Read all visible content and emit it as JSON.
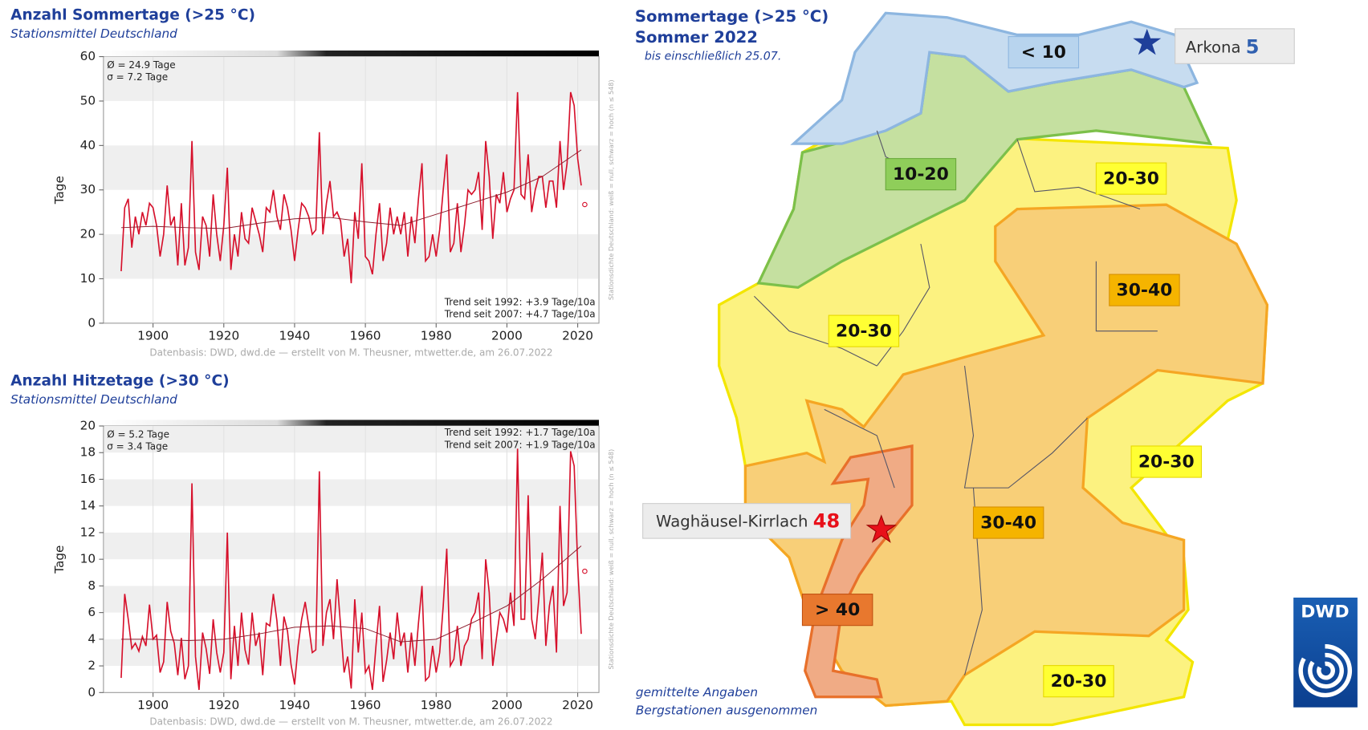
{
  "chart_data": [
    {
      "type": "line",
      "title": "Anzahl Sommertage (>25 °C)",
      "subtitle": "Stationsmittel Deutschland",
      "y_label": "Tage",
      "x": [
        1891,
        1892,
        1893,
        1894,
        1895,
        1896,
        1897,
        1898,
        1899,
        1900,
        1901,
        1902,
        1903,
        1904,
        1905,
        1906,
        1907,
        1908,
        1909,
        1910,
        1911,
        1912,
        1913,
        1914,
        1915,
        1916,
        1917,
        1918,
        1919,
        1920,
        1921,
        1922,
        1923,
        1924,
        1925,
        1926,
        1927,
        1928,
        1929,
        1930,
        1931,
        1932,
        1933,
        1934,
        1935,
        1936,
        1937,
        1938,
        1939,
        1940,
        1941,
        1942,
        1943,
        1944,
        1945,
        1946,
        1947,
        1948,
        1949,
        1950,
        1951,
        1952,
        1953,
        1954,
        1955,
        1956,
        1957,
        1958,
        1959,
        1960,
        1961,
        1962,
        1963,
        1964,
        1965,
        1966,
        1967,
        1968,
        1969,
        1970,
        1971,
        1972,
        1973,
        1974,
        1975,
        1976,
        1977,
        1978,
        1979,
        1980,
        1981,
        1982,
        1983,
        1984,
        1985,
        1986,
        1987,
        1988,
        1989,
        1990,
        1991,
        1992,
        1993,
        1994,
        1995,
        1996,
        1997,
        1998,
        1999,
        2000,
        2001,
        2002,
        2003,
        2004,
        2005,
        2006,
        2007,
        2008,
        2009,
        2010,
        2011,
        2012,
        2013,
        2014,
        2015,
        2016,
        2017,
        2018,
        2019,
        2020,
        2021
      ],
      "xlim": [
        1886,
        2026
      ],
      "ylim": [
        0,
        60
      ],
      "xticks": [
        1900,
        1920,
        1940,
        1960,
        1980,
        2000,
        2020
      ],
      "yticks": [
        0,
        10,
        20,
        30,
        40,
        50,
        60
      ],
      "series": [
        {
          "color": "#d6102b",
          "values": [
            11.7,
            26,
            28,
            17,
            24,
            20,
            25,
            22,
            27,
            26,
            22,
            15,
            20,
            31,
            22,
            24,
            13,
            27,
            13,
            17,
            41,
            16,
            12,
            24,
            22,
            15,
            29,
            20,
            14,
            22,
            35,
            12,
            20,
            15,
            25,
            19,
            18,
            26,
            23,
            20,
            16,
            26,
            25,
            30,
            24,
            21,
            29,
            26,
            21,
            14,
            21,
            27,
            26,
            24,
            20,
            21,
            43,
            20,
            27,
            32,
            24,
            25,
            23,
            15,
            19,
            9,
            25,
            19,
            36,
            15,
            14,
            11,
            20,
            27,
            14,
            18,
            26,
            20,
            24,
            20,
            25,
            15,
            24,
            18,
            28,
            36,
            14,
            15,
            20,
            15,
            21,
            30,
            38,
            16,
            18,
            27,
            16,
            22,
            30,
            29,
            30,
            34,
            21,
            41,
            33,
            19,
            29,
            27,
            34,
            25,
            28,
            30,
            52,
            29,
            28,
            38,
            25,
            30,
            33,
            33,
            26,
            32,
            32,
            26,
            41,
            30,
            36,
            52,
            49,
            37,
            31
          ]
        },
        {
          "color": "#8c1c2c",
          "x": [
            1891,
            1900,
            1910,
            1920,
            1930,
            1940,
            1950,
            1960,
            1970,
            1980,
            1990,
            2000,
            2010,
            2021
          ],
          "values": [
            21.5,
            21.8,
            21.5,
            21.3,
            22.5,
            23.5,
            23.8,
            22.8,
            22.0,
            24.5,
            27.0,
            29.5,
            33.0,
            39.0
          ]
        },
        {
          "color": "#d6102b",
          "x": [
            2022
          ],
          "values": [
            26.7
          ],
          "marker": "circle"
        }
      ],
      "annotations": [
        "Ø = 24.9 Tage",
        "σ = 7.2 Tage",
        "Trend seit 1992: +3.9 Tage/10a",
        "Trend seit 2007: +4.7 Tage/10a"
      ],
      "trend_position": "bottom",
      "source": "Datenbasis: DWD, dwd.de — erstellt von M. Theusner, mtwetter.de, am 26.07.2022",
      "side_note": "Stationsdichte Deutschland: weiß = null, schwarz = hoch (n ≤ 548)"
    },
    {
      "type": "line",
      "title": "Anzahl Hitzetage (>30 °C)",
      "subtitle": "Stationsmittel Deutschland",
      "y_label": "Tage",
      "x": [
        1891,
        1892,
        1893,
        1894,
        1895,
        1896,
        1897,
        1898,
        1899,
        1900,
        1901,
        1902,
        1903,
        1904,
        1905,
        1906,
        1907,
        1908,
        1909,
        1910,
        1911,
        1912,
        1913,
        1914,
        1915,
        1916,
        1917,
        1918,
        1919,
        1920,
        1921,
        1922,
        1923,
        1924,
        1925,
        1926,
        1927,
        1928,
        1929,
        1930,
        1931,
        1932,
        1933,
        1934,
        1935,
        1936,
        1937,
        1938,
        1939,
        1940,
        1941,
        1942,
        1943,
        1944,
        1945,
        1946,
        1947,
        1948,
        1949,
        1950,
        1951,
        1952,
        1953,
        1954,
        1955,
        1956,
        1957,
        1958,
        1959,
        1960,
        1961,
        1962,
        1963,
        1964,
        1965,
        1966,
        1967,
        1968,
        1969,
        1970,
        1971,
        1972,
        1973,
        1974,
        1975,
        1976,
        1977,
        1978,
        1979,
        1980,
        1981,
        1982,
        1983,
        1984,
        1985,
        1986,
        1987,
        1988,
        1989,
        1990,
        1991,
        1992,
        1993,
        1994,
        1995,
        1996,
        1997,
        1998,
        1999,
        2000,
        2001,
        2002,
        2003,
        2004,
        2005,
        2006,
        2007,
        2008,
        2009,
        2010,
        2011,
        2012,
        2013,
        2014,
        2015,
        2016,
        2017,
        2018,
        2019,
        2020,
        2021
      ],
      "xlim": [
        1886,
        2026
      ],
      "ylim": [
        0,
        20
      ],
      "xticks": [
        1900,
        1920,
        1940,
        1960,
        1980,
        2000,
        2020
      ],
      "yticks": [
        0,
        2,
        4,
        6,
        8,
        10,
        12,
        14,
        16,
        18,
        20
      ],
      "series": [
        {
          "color": "#d6102b",
          "values": [
            1.1,
            7.4,
            5.5,
            3.3,
            3.7,
            3.1,
            4.2,
            3.5,
            6.6,
            4.0,
            4.3,
            1.5,
            2.3,
            6.8,
            4.6,
            3.7,
            1.3,
            4.1,
            1.0,
            2.0,
            15.7,
            2.7,
            0.2,
            4.5,
            3.3,
            1.4,
            5.5,
            3.0,
            1.5,
            3.0,
            12.0,
            1.0,
            5.0,
            2.0,
            6.0,
            3.2,
            2.1,
            6.0,
            3.5,
            4.5,
            1.3,
            5.2,
            5.0,
            7.4,
            5.4,
            2.0,
            5.7,
            4.6,
            2.1,
            0.6,
            3.5,
            5.5,
            6.8,
            5.0,
            3.0,
            3.2,
            16.6,
            3.5,
            6.0,
            7.0,
            4.0,
            8.5,
            5.0,
            1.5,
            2.7,
            0.3,
            7.0,
            3.0,
            6.0,
            1.5,
            2.0,
            0.2,
            3.5,
            6.5,
            0.8,
            2.4,
            4.5,
            2.5,
            6.0,
            3.5,
            4.5,
            1.5,
            4.5,
            2.0,
            5.2,
            8.0,
            0.9,
            1.2,
            3.5,
            1.5,
            3.0,
            6.5,
            10.8,
            2.0,
            2.5,
            5.0,
            2.0,
            3.5,
            4.0,
            5.5,
            6.0,
            7.5,
            2.5,
            10.0,
            7.5,
            2.0,
            4.0,
            6.0,
            5.5,
            4.5,
            7.5,
            5.0,
            18.3,
            5.5,
            5.5,
            14.8,
            5.5,
            4.0,
            7.0,
            10.5,
            3.5,
            6.5,
            8.0,
            3.0,
            14.0,
            6.5,
            7.5,
            18.1,
            17.0,
            9.5,
            4.4
          ]
        },
        {
          "color": "#8c1c2c",
          "x": [
            1891,
            1900,
            1910,
            1920,
            1930,
            1940,
            1950,
            1960,
            1970,
            1980,
            1990,
            2000,
            2010,
            2021
          ],
          "values": [
            4.0,
            4.0,
            3.9,
            4.0,
            4.4,
            4.9,
            5.0,
            4.8,
            3.8,
            4.0,
            5.2,
            6.5,
            8.5,
            11.0
          ]
        },
        {
          "color": "#d6102b",
          "x": [
            2022
          ],
          "values": [
            9.1
          ],
          "marker": "circle"
        }
      ],
      "annotations": [
        "Ø = 5.2 Tage",
        "σ = 3.4 Tage",
        "Trend seit 1992: +1.7 Tage/10a",
        "Trend seit 2007: +1.9 Tage/10a"
      ],
      "trend_position": "top",
      "source": "Datenbasis: DWD, dwd.de — erstellt von M. Theusner, mtwetter.de, am 26.07.2022",
      "side_note": "Stationsdichte Deutschland: weiß = null, schwarz = hoch (n ≤ 548)"
    }
  ],
  "map": {
    "title": "Sommertage (>25 °C)",
    "subtitle": "Sommer 2022",
    "note": "bis einschließlich 25.07.",
    "regions": [
      "< 10",
      "10-20",
      "20-30",
      "20-30",
      "20-30",
      "20-30",
      "30-40",
      "30-40",
      "> 40"
    ],
    "stations": [
      {
        "name": "Arkona",
        "value": 5
      },
      {
        "name": "Waghäusel-Kirrlach",
        "value": 48
      }
    ],
    "notes": [
      "gemittelte Angaben",
      "Bergstationen ausgenommen"
    ],
    "logo": "DWD"
  }
}
